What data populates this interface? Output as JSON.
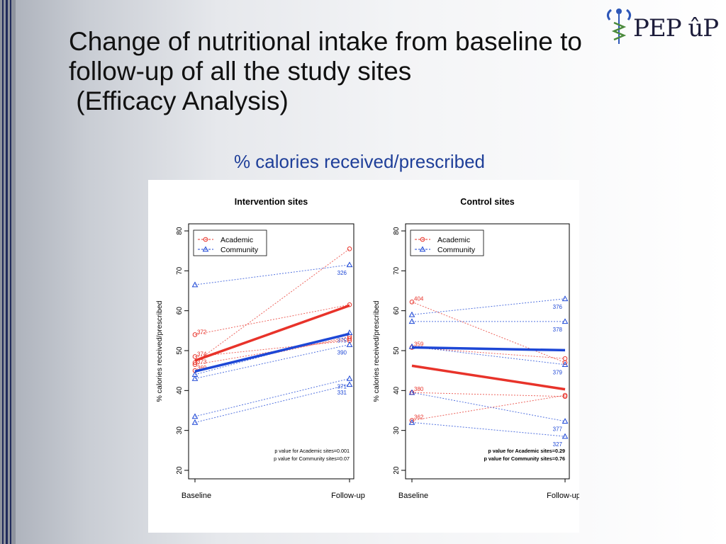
{
  "slide": {
    "title_lines": [
      "Change of nutritional intake from baseline to",
      "follow-up of all the study sites",
      " (Efficacy Analysis)"
    ],
    "subtitle": "% calories received/prescribed",
    "logo_text": "PEP ûP",
    "colors": {
      "title": "#111111",
      "subtitle": "#1f3f99",
      "academic": "#e8332a",
      "community": "#1d47d6"
    }
  },
  "chart_data": [
    {
      "type": "line",
      "title": "Intervention sites",
      "ylabel": "% calories received/prescribed",
      "categories": [
        "Baseline",
        "Follow-up"
      ],
      "ylim": [
        20,
        80
      ],
      "yticks": [
        20,
        30,
        40,
        50,
        60,
        70,
        80
      ],
      "legend": {
        "position": "top-left",
        "entries": [
          "Academic",
          "Community"
        ]
      },
      "site_series": [
        {
          "group": "academic",
          "label": "",
          "values": [
            47,
            75.5
          ]
        },
        {
          "group": "academic",
          "label": "372",
          "values": [
            54,
            61.5
          ]
        },
        {
          "group": "academic",
          "label": "374",
          "values": [
            48.5,
            52.5
          ]
        },
        {
          "group": "academic",
          "label": "373",
          "values": [
            46.5,
            53
          ]
        },
        {
          "group": "academic",
          "label": "369",
          "values": [
            45,
            53.5
          ]
        },
        {
          "group": "community",
          "label": "326",
          "values": [
            66.5,
            71.5
          ]
        },
        {
          "group": "community",
          "label": "375",
          "values": [
            44,
            54.5
          ]
        },
        {
          "group": "community",
          "label": "390",
          "values": [
            43,
            51.5
          ]
        },
        {
          "group": "community",
          "label": "371",
          "values": [
            33.5,
            43
          ]
        },
        {
          "group": "community",
          "label": "331",
          "values": [
            32,
            41.5
          ]
        }
      ],
      "mean_series": [
        {
          "group": "academic",
          "name": "Academic",
          "values": [
            47.5,
            61.3
          ]
        },
        {
          "group": "community",
          "name": "Community",
          "values": [
            44.8,
            54.2
          ]
        }
      ],
      "annotations": [
        "p value for Academic sites=0.001",
        "p value for Community sites=0.07"
      ]
    },
    {
      "type": "line",
      "title": "Control sites",
      "ylabel": "% calories received/prescribed",
      "categories": [
        "Baseline",
        "Follow-up"
      ],
      "ylim": [
        20,
        80
      ],
      "yticks": [
        20,
        30,
        40,
        50,
        60,
        70,
        80
      ],
      "legend": {
        "position": "top-left",
        "entries": [
          "Academic",
          "Community"
        ]
      },
      "site_series": [
        {
          "group": "academic",
          "label": "404",
          "values": [
            62.2,
            47
          ]
        },
        {
          "group": "academic",
          "label": "359",
          "values": [
            50.8,
            48
          ]
        },
        {
          "group": "academic",
          "label": "380",
          "values": [
            39.5,
            38.5
          ]
        },
        {
          "group": "academic",
          "label": "362",
          "values": [
            32.5,
            38.8
          ]
        },
        {
          "group": "community",
          "label": "376",
          "values": [
            59,
            63
          ]
        },
        {
          "group": "community",
          "label": "378",
          "values": [
            57.3,
            57.3
          ]
        },
        {
          "group": "community",
          "label": "379",
          "values": [
            51,
            46.5
          ]
        },
        {
          "group": "community",
          "label": "377",
          "values": [
            39.5,
            32.3
          ]
        },
        {
          "group": "community",
          "label": "327",
          "values": [
            32,
            28.5
          ]
        }
      ],
      "mean_series": [
        {
          "group": "academic",
          "name": "Academic",
          "values": [
            46.2,
            40.3
          ]
        },
        {
          "group": "community",
          "name": "Community",
          "values": [
            50.8,
            50.1
          ]
        }
      ],
      "annotations": [
        "p value for Academic sites=0.29",
        "p value for Community sites=0.76"
      ]
    }
  ]
}
